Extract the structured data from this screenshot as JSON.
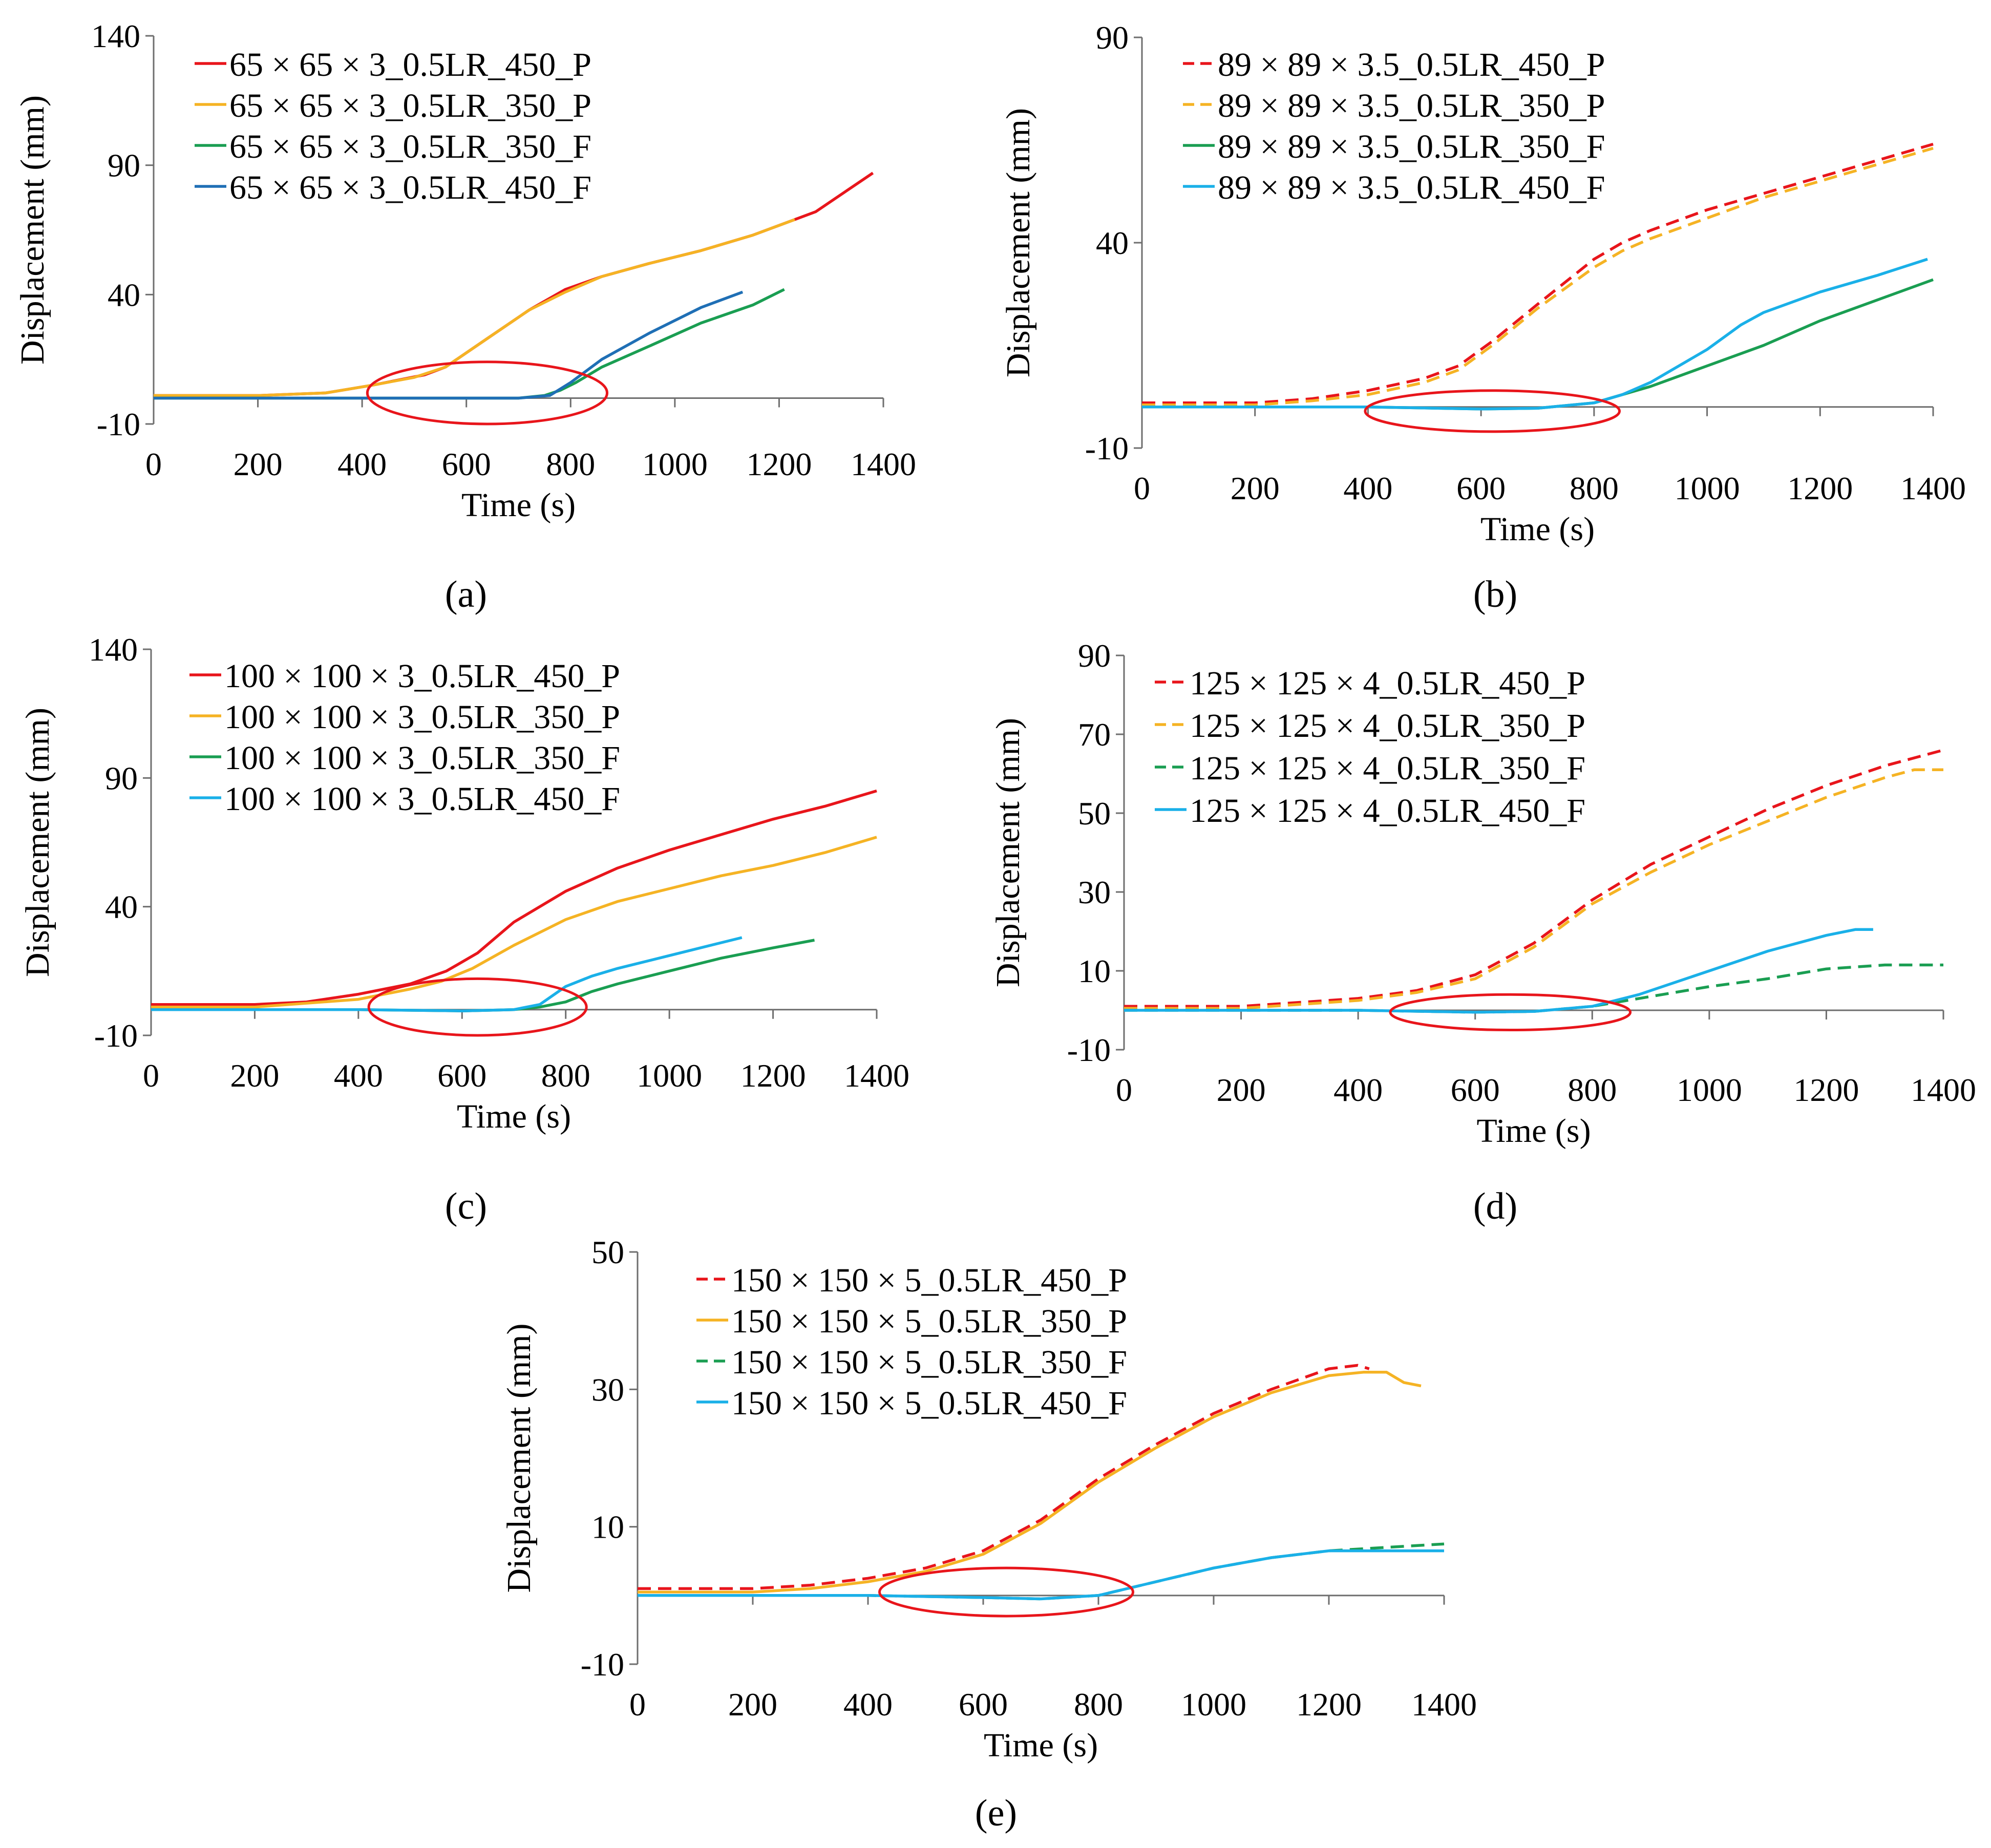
{
  "chart_data": [
    {
      "type": "line",
      "panel": "a",
      "caption": "(a)",
      "xlabel": "Time (s)",
      "ylabel": "Displacement (mm)",
      "xlim": [
        0,
        1400
      ],
      "ylim": [
        -10,
        140
      ],
      "xticks": [
        0,
        200,
        400,
        600,
        800,
        1000,
        1200,
        1400
      ],
      "yticks": [
        -10,
        40,
        90,
        140
      ],
      "x_axis_at": 0,
      "legend_position": "top-left",
      "highlight": {
        "cx": 640,
        "cy": 2,
        "rx": 230,
        "ry": 12
      },
      "series": [
        {
          "name": "65 × 65 × 3_0.5LR_450_P",
          "color": "#e8151b",
          "dash": "solid",
          "x": [
            0,
            200,
            330,
            420,
            520,
            560,
            640,
            720,
            790,
            860,
            950,
            1050,
            1150,
            1270,
            1380
          ],
          "y": [
            1,
            1,
            2,
            5,
            9,
            12,
            23,
            34,
            42,
            47,
            52,
            57,
            63,
            72,
            87
          ]
        },
        {
          "name": "65 × 65 × 3_0.5LR_350_P",
          "color": "#f5b324",
          "dash": "solid",
          "x": [
            0,
            200,
            330,
            420,
            500,
            560,
            640,
            720,
            790,
            860,
            950,
            1050,
            1150,
            1230
          ],
          "y": [
            1,
            1,
            2,
            5,
            8,
            12,
            23,
            34,
            41,
            47,
            52,
            57,
            63,
            69
          ]
        },
        {
          "name": "65 × 65 × 3_0.5LR_350_F",
          "color": "#1a9e52",
          "dash": "solid",
          "x": [
            0,
            200,
            400,
            600,
            700,
            750,
            780,
            810,
            860,
            950,
            1050,
            1150,
            1210
          ],
          "y": [
            0,
            0,
            0,
            0,
            0,
            1,
            3,
            6,
            12,
            20,
            29,
            36,
            42
          ]
        },
        {
          "name": "65 × 65 × 3_0.5LR_450_F",
          "color": "#1f6fb5",
          "dash": "solid",
          "x": [
            0,
            200,
            400,
            600,
            700,
            760,
            800,
            860,
            950,
            1050,
            1130
          ],
          "y": [
            0,
            0,
            0,
            0,
            0,
            1,
            6,
            15,
            25,
            35,
            41
          ]
        }
      ]
    },
    {
      "type": "line",
      "panel": "b",
      "caption": "(b)",
      "xlabel": "Time (s)",
      "ylabel": "Displacement (mm)",
      "xlim": [
        0,
        1400
      ],
      "ylim": [
        -10,
        90
      ],
      "xticks": [
        0,
        200,
        400,
        600,
        800,
        1000,
        1200,
        1400
      ],
      "yticks": [
        -10,
        40,
        90
      ],
      "x_axis_at": 0,
      "legend_position": "top-left",
      "highlight": {
        "cx": 620,
        "cy": -1,
        "rx": 225,
        "ry": 5
      },
      "series": [
        {
          "name": "89 × 89 × 3.5_0.5LR_450_P",
          "color": "#e8151b",
          "dash": "dashed",
          "x": [
            0,
            200,
            300,
            400,
            500,
            560,
            620,
            700,
            800,
            850,
            900,
            1000,
            1100,
            1200,
            1300,
            1400
          ],
          "y": [
            1,
            1,
            2,
            4,
            7,
            10,
            16,
            25,
            36,
            40,
            43,
            48,
            52,
            56,
            60,
            64
          ]
        },
        {
          "name": "89 × 89 × 3.5_0.5LR_350_P",
          "color": "#f5b324",
          "dash": "dashed",
          "x": [
            0,
            200,
            300,
            400,
            500,
            560,
            620,
            700,
            800,
            850,
            900,
            1000,
            1100,
            1200,
            1300,
            1400
          ],
          "y": [
            0.5,
            0.5,
            1.5,
            3,
            6,
            9,
            15,
            24,
            34,
            38,
            41,
            46,
            51,
            55,
            59,
            63
          ]
        },
        {
          "name": "89 × 89 × 3.5_0.5LR_350_F",
          "color": "#1a9e52",
          "dash": "solid",
          "x": [
            0,
            200,
            400,
            600,
            700,
            800,
            850,
            900,
            1000,
            1100,
            1200,
            1300,
            1400
          ],
          "y": [
            0,
            0,
            0,
            -0.5,
            -0.3,
            1,
            3,
            5,
            10,
            15,
            21,
            26,
            31
          ]
        },
        {
          "name": "89 × 89 × 3.5_0.5LR_450_F",
          "color": "#1ab0e8",
          "dash": "solid",
          "x": [
            0,
            200,
            400,
            600,
            700,
            800,
            850,
            900,
            1000,
            1060,
            1100,
            1200,
            1300,
            1390
          ],
          "y": [
            0,
            0,
            0,
            -0.5,
            -0.3,
            1,
            3,
            6,
            14,
            20,
            23,
            28,
            32,
            36
          ]
        }
      ]
    },
    {
      "type": "line",
      "panel": "c",
      "caption": "(c)",
      "xlabel": "Time (s)",
      "ylabel": "Displacement (mm)",
      "xlim": [
        0,
        1400
      ],
      "ylim": [
        -10,
        140
      ],
      "xticks": [
        0,
        200,
        400,
        600,
        800,
        1000,
        1200,
        1400
      ],
      "yticks": [
        -10,
        40,
        90,
        140
      ],
      "x_axis_at": 0,
      "legend_position": "top-left",
      "highlight": {
        "cx": 630,
        "cy": 1,
        "rx": 210,
        "ry": 11
      },
      "series": [
        {
          "name": "100 × 100 × 3_0.5LR_450_P",
          "color": "#e8151b",
          "dash": "solid",
          "x": [
            0,
            200,
            300,
            400,
            500,
            570,
            630,
            700,
            800,
            900,
            1000,
            1100,
            1200,
            1300,
            1400
          ],
          "y": [
            2,
            2,
            3,
            6,
            10,
            15,
            22,
            34,
            46,
            55,
            62,
            68,
            74,
            79,
            85
          ]
        },
        {
          "name": "100 × 100 × 3_0.5LR_350_P",
          "color": "#f5b324",
          "dash": "solid",
          "x": [
            0,
            200,
            400,
            500,
            560,
            620,
            700,
            800,
            900,
            1000,
            1100,
            1200,
            1300,
            1400
          ],
          "y": [
            1,
            1,
            4,
            8,
            11,
            16,
            25,
            35,
            42,
            47,
            52,
            56,
            61,
            67
          ]
        },
        {
          "name": "100 × 100 × 3_0.5LR_350_F",
          "color": "#1a9e52",
          "dash": "solid",
          "x": [
            0,
            200,
            400,
            600,
            700,
            750,
            800,
            850,
            900,
            1000,
            1100,
            1200,
            1280
          ],
          "y": [
            0,
            0,
            0,
            -0.5,
            0,
            1,
            3,
            7,
            10,
            15,
            20,
            24,
            27
          ]
        },
        {
          "name": "100 × 100 × 3_0.5LR_450_F",
          "color": "#1ab0e8",
          "dash": "solid",
          "x": [
            0,
            200,
            400,
            600,
            700,
            750,
            800,
            850,
            900,
            1000,
            1100,
            1140
          ],
          "y": [
            0,
            0,
            0,
            -0.5,
            0,
            2,
            9,
            13,
            16,
            21,
            26,
            28
          ]
        }
      ]
    },
    {
      "type": "line",
      "panel": "d",
      "caption": "(d)",
      "xlabel": "Time (s)",
      "ylabel": "Displacement (mm)",
      "xlim": [
        0,
        1400
      ],
      "ylim": [
        -10,
        90
      ],
      "xticks": [
        0,
        200,
        400,
        600,
        800,
        1000,
        1200,
        1400
      ],
      "yticks": [
        -10,
        10,
        30,
        50,
        70,
        90
      ],
      "x_axis_at": 0,
      "legend_position": "top-left",
      "highlight": {
        "cx": 660,
        "cy": -0.5,
        "rx": 205,
        "ry": 4.5
      },
      "series": [
        {
          "name": "125 × 125 × 4_0.5LR_450_P",
          "color": "#e8151b",
          "dash": "dashed",
          "x": [
            0,
            200,
            400,
            500,
            600,
            700,
            800,
            900,
            1000,
            1100,
            1200,
            1300,
            1400
          ],
          "y": [
            1,
            1,
            3,
            5,
            9,
            17,
            28,
            37,
            44,
            51,
            57,
            62,
            66
          ]
        },
        {
          "name": "125 × 125 × 4_0.5LR_350_P",
          "color": "#f5b324",
          "dash": "dashed",
          "x": [
            0,
            200,
            400,
            500,
            600,
            700,
            800,
            900,
            1000,
            1100,
            1200,
            1300,
            1350,
            1400
          ],
          "y": [
            0.5,
            0.5,
            2.5,
            4.5,
            8,
            16,
            27,
            35,
            42,
            48,
            54,
            59,
            61,
            61
          ]
        },
        {
          "name": "125 × 125 × 4_0.5LR_350_F",
          "color": "#1a9e52",
          "dash": "dashed",
          "x": [
            0,
            200,
            400,
            600,
            700,
            800,
            880,
            1000,
            1100,
            1200,
            1300,
            1400
          ],
          "y": [
            0,
            0,
            0,
            -0.5,
            -0.3,
            1,
            3,
            6,
            8,
            10.5,
            11.5,
            11.5
          ]
        },
        {
          "name": "125 × 125 × 4_0.5LR_450_F",
          "color": "#1ab0e8",
          "dash": "solid",
          "x": [
            0,
            200,
            400,
            600,
            700,
            800,
            880,
            1000,
            1100,
            1200,
            1250,
            1280
          ],
          "y": [
            0,
            0,
            0,
            -0.5,
            -0.3,
            1,
            4,
            10,
            15,
            19,
            20.5,
            20.5
          ]
        }
      ]
    },
    {
      "type": "line",
      "panel": "e",
      "caption": "(e)",
      "xlabel": "Time (s)",
      "ylabel": "Displacement (mm)",
      "xlim": [
        0,
        1400
      ],
      "ylim": [
        -10,
        50
      ],
      "xticks": [
        0,
        200,
        400,
        600,
        800,
        1000,
        1200,
        1400
      ],
      "yticks": [
        -10,
        10,
        30,
        50
      ],
      "x_axis_at": 0,
      "legend_position": "top-left",
      "highlight": {
        "cx": 640,
        "cy": 0.5,
        "rx": 220,
        "ry": 3.5
      },
      "series": [
        {
          "name": "150 × 150 × 5_0.5LR_450_P",
          "color": "#e8151b",
          "dash": "dashed",
          "x": [
            0,
            200,
            300,
            400,
            500,
            600,
            700,
            800,
            900,
            1000,
            1100,
            1200,
            1250,
            1270
          ],
          "y": [
            1,
            1,
            1.5,
            2.5,
            4,
            6.5,
            11,
            17,
            22,
            26.5,
            30,
            33,
            33.5,
            33
          ]
        },
        {
          "name": "150 × 150 × 5_0.5LR_350_P",
          "color": "#f5b324",
          "dash": "solid",
          "x": [
            0,
            200,
            300,
            400,
            500,
            600,
            700,
            800,
            900,
            1000,
            1100,
            1200,
            1260,
            1300,
            1330,
            1360
          ],
          "y": [
            0.5,
            0.5,
            1,
            2,
            3.5,
            6,
            10.5,
            16.5,
            21.5,
            26,
            29.5,
            32,
            32.5,
            32.5,
            31,
            30.5
          ]
        },
        {
          "name": "150 × 150 × 5_0.5LR_350_F",
          "color": "#1a9e52",
          "dash": "dashed",
          "x": [
            0,
            200,
            400,
            600,
            700,
            800,
            900,
            1000,
            1100,
            1200,
            1300,
            1400
          ],
          "y": [
            0,
            0,
            0,
            -0.3,
            -0.5,
            0,
            2,
            4,
            5.5,
            6.5,
            7,
            7.5
          ]
        },
        {
          "name": "150 × 150 × 5_0.5LR_450_F",
          "color": "#1ab0e8",
          "dash": "solid",
          "x": [
            0,
            200,
            400,
            600,
            700,
            800,
            900,
            1000,
            1100,
            1200,
            1300,
            1400
          ],
          "y": [
            0,
            0,
            0,
            -0.3,
            -0.5,
            0,
            2,
            4,
            5.5,
            6.5,
            6.5,
            6.5
          ]
        }
      ]
    }
  ]
}
